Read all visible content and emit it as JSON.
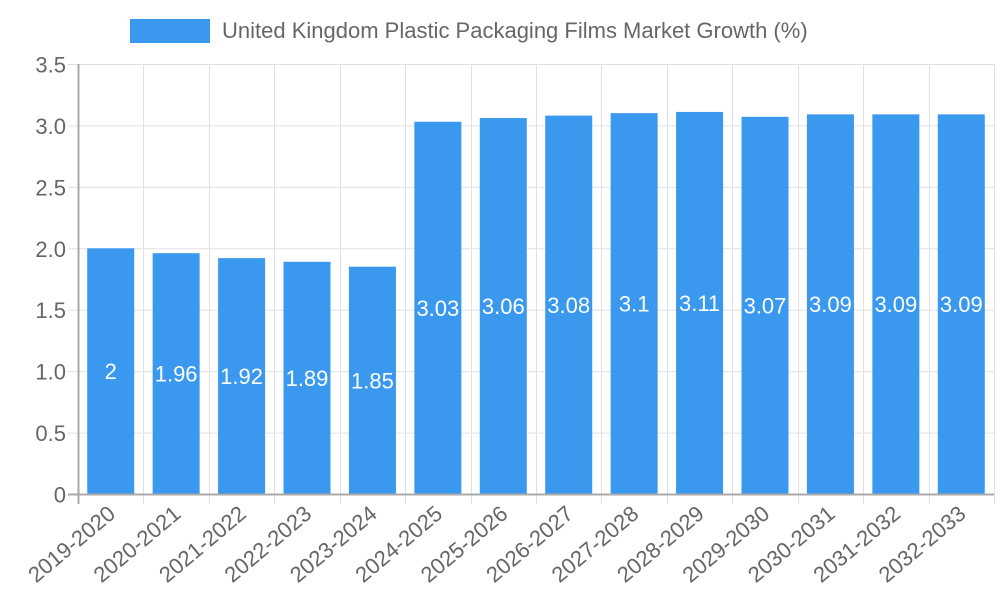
{
  "chart_data": {
    "type": "bar",
    "title": "",
    "legend": [
      {
        "label": "United Kingdom Plastic Packaging Films Market Growth (%)",
        "color": "#3a99ee"
      }
    ],
    "legend_position": "top",
    "xlabel": "",
    "ylabel": "",
    "ylim": [
      0,
      3.5
    ],
    "yticks": [
      "0",
      "0.5",
      "1.0",
      "1.5",
      "2.0",
      "2.5",
      "3.0",
      "3.5"
    ],
    "grid": true,
    "categories": [
      "2019-2020",
      "2020-2021",
      "2021-2022",
      "2022-2023",
      "2023-2024",
      "2024-2025",
      "2025-2026",
      "2026-2027",
      "2027-2028",
      "2028-2029",
      "2029-2030",
      "2030-2031",
      "2031-2032",
      "2032-2033"
    ],
    "series": [
      {
        "name": "United Kingdom Plastic Packaging Films Market Growth (%)",
        "color": "#3a99ee",
        "values": [
          2,
          1.96,
          1.92,
          1.89,
          1.85,
          3.03,
          3.06,
          3.08,
          3.1,
          3.11,
          3.07,
          3.09,
          3.09,
          3.09
        ],
        "data_labels": [
          "2",
          "1.96",
          "1.92",
          "1.89",
          "1.85",
          "3.03",
          "3.06",
          "3.08",
          "3.1",
          "3.11",
          "3.07",
          "3.09",
          "3.09",
          "3.09"
        ]
      }
    ]
  },
  "legend": {
    "label": "United Kingdom Plastic Packaging Films Market Growth (%)",
    "color": "#3a99ee"
  },
  "colors": {
    "bar": "#3a99ee",
    "grid": "#e0e0e0",
    "axis": "#aaaaaa",
    "tick_text": "#666666",
    "data_label": "#ffffff"
  }
}
